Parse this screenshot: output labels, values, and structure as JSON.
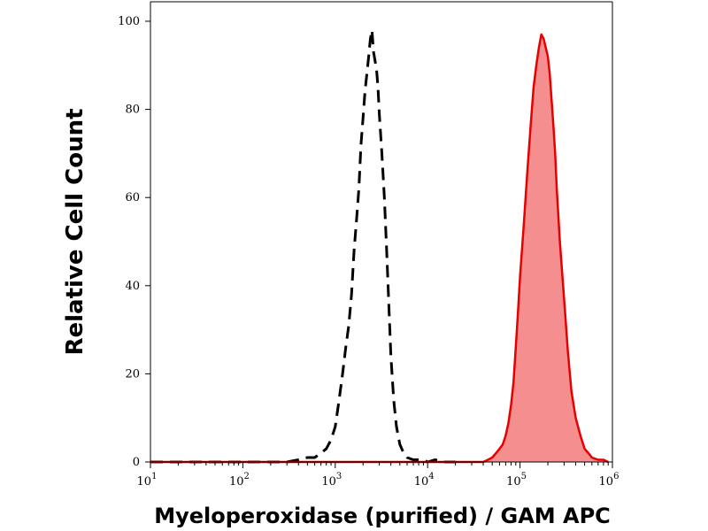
{
  "chart_data": {
    "type": "area",
    "xlabel": "Myeloperoxidase (purified) / GAM APC",
    "ylabel": "Relative Cell Count",
    "x_scale": "log",
    "xlim": [
      10,
      1000000
    ],
    "ylim": [
      0,
      100
    ],
    "x_tick_labels": [
      {
        "base": "10",
        "exp": "1",
        "value": 10
      },
      {
        "base": "10",
        "exp": "2",
        "value": 100
      },
      {
        "base": "10",
        "exp": "3",
        "value": 1000
      },
      {
        "base": "10",
        "exp": "4",
        "value": 10000
      },
      {
        "base": "10",
        "exp": "5",
        "value": 100000
      },
      {
        "base": "10",
        "exp": "6",
        "value": 1000000
      }
    ],
    "y_ticks": [
      0,
      20,
      40,
      60,
      80,
      100
    ],
    "y_tick_labels": [
      "0",
      "20",
      "40",
      "60",
      "80",
      "100"
    ],
    "grid": false,
    "series": [
      {
        "style": "dashed",
        "color": "#000000",
        "filled": false,
        "x": [
          10,
          300,
          400,
          500,
          600,
          700,
          800,
          900,
          1000,
          1100,
          1200,
          1300,
          1400,
          1500,
          1600,
          1700,
          1800,
          1900,
          2000,
          2100,
          2200,
          2300,
          2400,
          2500,
          2600,
          2700,
          2800,
          2900,
          3000,
          3200,
          3400,
          3600,
          3800,
          4000,
          4300,
          4600,
          5000,
          5500,
          6000,
          7000,
          8000,
          9000,
          10000,
          12000,
          15000,
          20000
        ],
        "y": [
          0,
          0,
          0.5,
          1,
          1,
          2,
          3,
          5,
          8,
          14,
          20,
          26,
          31,
          38,
          48,
          55,
          62,
          72,
          78,
          84,
          88,
          92,
          96,
          98,
          93,
          91,
          89,
          85,
          79,
          70,
          60,
          48,
          36,
          24,
          14,
          8,
          4,
          2,
          1,
          0.5,
          0.5,
          0.5,
          0,
          0.5,
          0,
          0
        ]
      },
      {
        "style": "solid",
        "color": "#e60000",
        "fill": "#f58f8f",
        "filled": true,
        "x": [
          10,
          40000,
          45000,
          50000,
          55000,
          60000,
          65000,
          70000,
          75000,
          80000,
          85000,
          90000,
          95000,
          100000,
          110000,
          120000,
          130000,
          140000,
          150000,
          160000,
          170000,
          180000,
          190000,
          200000,
          210000,
          220000,
          230000,
          240000,
          250000,
          270000,
          300000,
          330000,
          360000,
          400000,
          450000,
          500000,
          550000,
          600000,
          700000,
          800000,
          900000
        ],
        "y": [
          0,
          0,
          0.5,
          1,
          2,
          3,
          4,
          6,
          9,
          13,
          18,
          26,
          34,
          42,
          54,
          66,
          76,
          85,
          90,
          94,
          97,
          96,
          94,
          92,
          88,
          82,
          76,
          70,
          62,
          50,
          37,
          25,
          16,
          10,
          6,
          3,
          2,
          1,
          0.5,
          0.5,
          0
        ]
      }
    ]
  }
}
